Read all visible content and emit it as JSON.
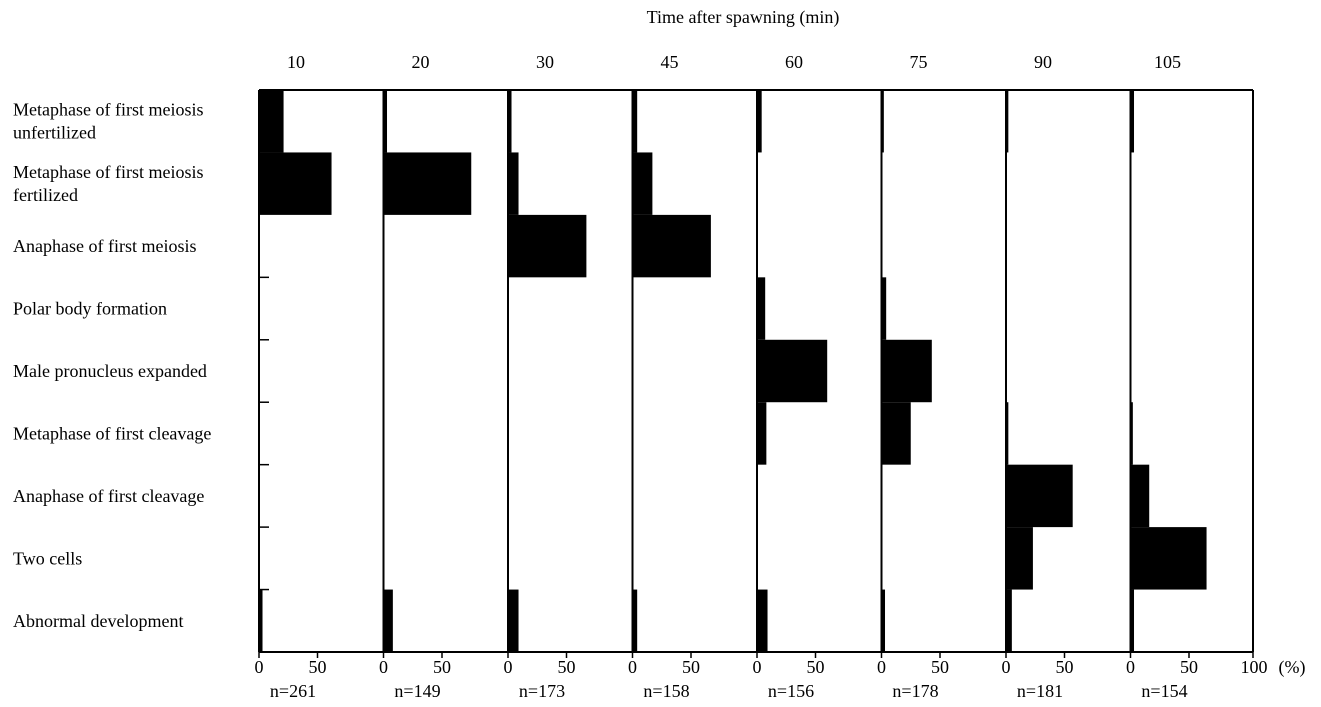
{
  "chart_data": {
    "type": "bar",
    "orientation": "horizontal",
    "title": "Time after spawning (min)",
    "categories": [
      "Metaphase of first meiosis unfertilized",
      "Metaphase of first meiosis fertilized",
      "Anaphase of first meiosis",
      "Polar body formation",
      "Male pronucleus expanded",
      "Metaphase of first cleavage",
      "Anaphase of first cleavage",
      "Two cells",
      "Abnormal development"
    ],
    "category_label_lines": [
      [
        "Metaphase of first meiosis",
        "unfertilized"
      ],
      [
        "Metaphase of first meiosis",
        "fertilized"
      ],
      [
        "Anaphase of first meiosis"
      ],
      [
        "Polar body formation"
      ],
      [
        "Male pronucleus expanded"
      ],
      [
        "Metaphase of first cleavage"
      ],
      [
        "Anaphase of first cleavage"
      ],
      [
        "Two cells"
      ],
      [
        "Abnormal development"
      ]
    ],
    "x_ticks": [
      "0",
      "50"
    ],
    "x_end_label": "100",
    "x_unit": "(%)",
    "xlim": [
      0,
      100
    ],
    "panels": [
      {
        "time": "10",
        "n": "n=261",
        "values": [
          21,
          62,
          0,
          0,
          0,
          0,
          0,
          0,
          3
        ]
      },
      {
        "time": "20",
        "n": "n=149",
        "values": [
          3,
          75,
          0,
          0,
          0,
          0,
          0,
          0,
          8
        ]
      },
      {
        "time": "30",
        "n": "n=173",
        "values": [
          3,
          9,
          67,
          0,
          0,
          0,
          0,
          0,
          9
        ]
      },
      {
        "time": "45",
        "n": "n=158",
        "values": [
          4,
          17,
          67,
          0,
          0,
          0,
          0,
          0,
          4
        ]
      },
      {
        "time": "60",
        "n": "n=156",
        "values": [
          4,
          0,
          0,
          7,
          60,
          8,
          0,
          0,
          9
        ]
      },
      {
        "time": "75",
        "n": "n=178",
        "values": [
          2,
          0,
          0,
          4,
          43,
          25,
          0,
          0,
          3
        ]
      },
      {
        "time": "90",
        "n": "n=181",
        "values": [
          2,
          0,
          0,
          0,
          0,
          2,
          57,
          23,
          5
        ]
      },
      {
        "time": "105",
        "n": "n=154",
        "values": [
          3,
          0,
          0,
          0,
          0,
          2,
          16,
          65,
          3
        ]
      }
    ]
  }
}
